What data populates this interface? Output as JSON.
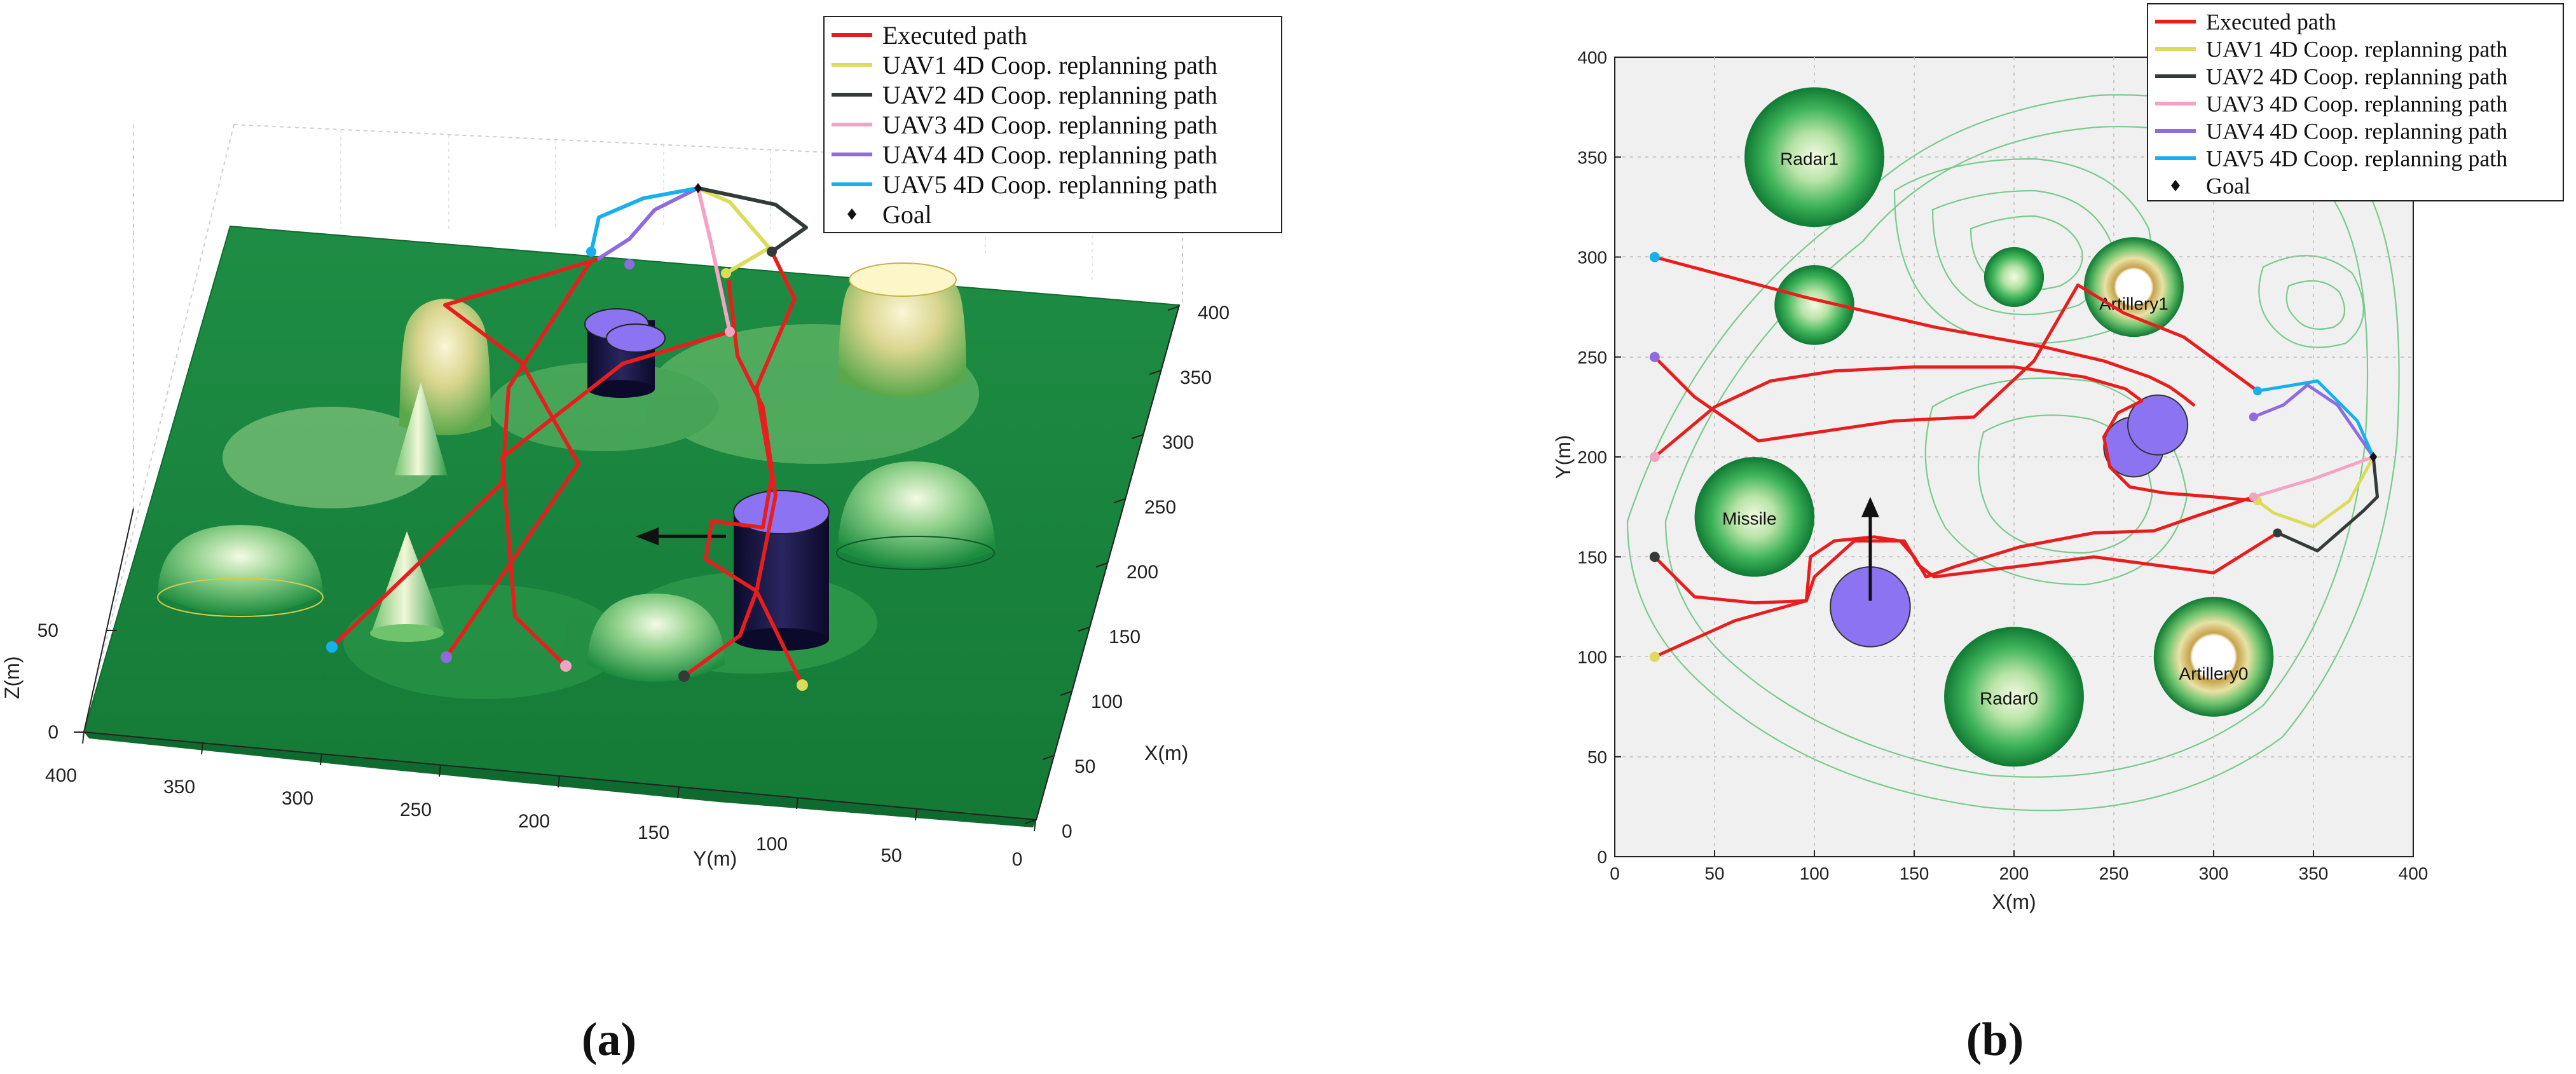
{
  "panels": [
    {
      "label": "(a)",
      "legend": [
        {
          "label": "Executed path",
          "color": "#e81e1e",
          "marker": "line"
        },
        {
          "label": "UAV1 4D Coop. replanning path",
          "color": "#dcdc5a",
          "marker": "line"
        },
        {
          "label": "UAV2 4D Coop. replanning path",
          "color": "#333b38",
          "marker": "line"
        },
        {
          "label": "UAV3 4D Coop. replanning path",
          "color": "#f4a3c4",
          "marker": "line"
        },
        {
          "label": "UAV4 4D Coop. replanning path",
          "color": "#8f6be0",
          "marker": "line"
        },
        {
          "label": "UAV5 4D Coop. replanning path",
          "color": "#16b0ef",
          "marker": "line"
        },
        {
          "label": "Goal",
          "color": "#111111",
          "marker": "diamond"
        }
      ],
      "axes": {
        "xlabel": "X(m)",
        "ylabel": "Y(m)",
        "zlabel": "Z(m)",
        "x_ticks": [
          "0",
          "50",
          "100",
          "150",
          "200",
          "250",
          "300",
          "350",
          "400"
        ],
        "y_ticks": [
          "400",
          "350",
          "300",
          "250",
          "200",
          "150",
          "100",
          "50",
          "0"
        ],
        "z_ticks": [
          "0",
          "50"
        ]
      }
    },
    {
      "label": "(b)",
      "legend": [
        {
          "label": "Executed path",
          "color": "#e81e1e",
          "marker": "line"
        },
        {
          "label": "UAV1 4D Coop. replanning path",
          "color": "#dcdc5a",
          "marker": "line"
        },
        {
          "label": "UAV2 4D Coop. replanning path",
          "color": "#333b38",
          "marker": "line"
        },
        {
          "label": "UAV3 4D Coop. replanning path",
          "color": "#f4a3c4",
          "marker": "line"
        },
        {
          "label": "UAV4 4D Coop. replanning path",
          "color": "#8f6be0",
          "marker": "line"
        },
        {
          "label": "UAV5 4D Coop. replanning path",
          "color": "#16b0ef",
          "marker": "line"
        },
        {
          "label": "Goal",
          "color": "#111111",
          "marker": "diamond"
        }
      ],
      "threat_labels": [
        "Radar1",
        "Artillery1",
        "Missile",
        "Radar0",
        "Artillery0"
      ]
    }
  ],
  "chart_data": [
    {
      "type": "scatter",
      "projection": "3d-terrain",
      "xlabel": "X(m)",
      "ylabel": "Y(m)",
      "zlabel": "Z(m)",
      "xlim": [
        0,
        400
      ],
      "ylim": [
        0,
        400
      ],
      "zlim": [
        0,
        60
      ],
      "grid": true,
      "legend_position": "top-right"
    },
    {
      "type": "line",
      "xlabel": "X(m)",
      "ylabel": "Y(m)",
      "xlim": [
        0,
        400
      ],
      "ylim": [
        0,
        400
      ],
      "x_ticks": [
        0,
        50,
        100,
        150,
        200,
        250,
        300,
        350,
        400
      ],
      "y_ticks": [
        0,
        50,
        100,
        150,
        200,
        250,
        300,
        350,
        400
      ],
      "grid": true,
      "legend_position": "top-right",
      "goal": [
        380,
        200
      ],
      "series": [
        {
          "name": "Executed path",
          "color": "#e81e1e",
          "points": [
            [
              20,
              300
            ],
            [
              95,
              280
            ],
            [
              160,
              265
            ],
            [
              215,
              255
            ],
            [
              245,
              248
            ],
            [
              268,
              240
            ],
            [
              278,
              235
            ],
            [
              285,
              230
            ],
            [
              290,
              226
            ]
          ]
        },
        {
          "name": "Executed path",
          "color": "#e81e1e",
          "points": [
            [
              20,
              250
            ],
            [
              40,
              230
            ],
            [
              72,
              208
            ],
            [
              140,
              218
            ],
            [
              180,
              220
            ],
            [
              210,
              248
            ],
            [
              232,
              286
            ],
            [
              255,
              272
            ],
            [
              285,
              260
            ],
            [
              322,
              233
            ]
          ]
        },
        {
          "name": "Executed path",
          "color": "#e81e1e",
          "points": [
            [
              20,
              200
            ],
            [
              50,
              225
            ],
            [
              78,
              238
            ],
            [
              110,
              243
            ],
            [
              150,
              245
            ],
            [
              200,
              245
            ],
            [
              235,
              240
            ],
            [
              256,
              234
            ],
            [
              264,
              228
            ],
            [
              252,
              222
            ],
            [
              245,
              210
            ],
            [
              248,
              195
            ],
            [
              258,
              185
            ],
            [
              275,
              182
            ],
            [
              300,
              180
            ],
            [
              322,
              178
            ]
          ]
        },
        {
          "name": "Executed path",
          "color": "#e81e1e",
          "points": [
            [
              20,
              150
            ],
            [
              40,
              130
            ],
            [
              70,
              127
            ],
            [
              96,
              128
            ],
            [
              98,
              150
            ],
            [
              110,
              158
            ],
            [
              130,
              160
            ],
            [
              143,
              158
            ],
            [
              150,
              150
            ],
            [
              156,
              140
            ],
            [
              170,
              145
            ],
            [
              203,
              155
            ],
            [
              240,
              162
            ],
            [
              270,
              163
            ],
            [
              290,
              170
            ],
            [
              320,
              180
            ]
          ]
        },
        {
          "name": "Executed path",
          "color": "#e81e1e",
          "points": [
            [
              20,
              100
            ],
            [
              60,
              118
            ],
            [
              96,
              128
            ],
            [
              100,
              140
            ],
            [
              120,
              158
            ],
            [
              145,
              158
            ],
            [
              152,
              146
            ],
            [
              160,
              140
            ],
            [
              200,
              145
            ],
            [
              240,
              150
            ],
            [
              300,
              142
            ],
            [
              332,
              162
            ]
          ]
        },
        {
          "name": "UAV1 4D Coop. replanning path",
          "color": "#dcdc5a",
          "points": [
            [
              322,
              178
            ],
            [
              330,
              172
            ],
            [
              350,
              165
            ],
            [
              368,
              178
            ],
            [
              380,
              200
            ]
          ]
        },
        {
          "name": "UAV2 4D Coop. replanning path",
          "color": "#333b38",
          "points": [
            [
              332,
              162
            ],
            [
              352,
              153
            ],
            [
              375,
              173
            ],
            [
              382,
              180
            ],
            [
              380,
              200
            ]
          ]
        },
        {
          "name": "UAV3 4D Coop. replanning path",
          "color": "#f4a3c4",
          "points": [
            [
              320,
              180
            ],
            [
              350,
              189
            ],
            [
              380,
              200
            ]
          ]
        },
        {
          "name": "UAV4 4D Coop. replanning path",
          "color": "#8f6be0",
          "points": [
            [
              320,
              220
            ],
            [
              335,
              226
            ],
            [
              347,
              236
            ],
            [
              362,
              226
            ],
            [
              380,
              200
            ]
          ]
        },
        {
          "name": "UAV5 4D Coop. replanning path",
          "color": "#16b0ef",
          "points": [
            [
              322,
              233
            ],
            [
              340,
              236
            ],
            [
              352,
              238
            ],
            [
              362,
              228
            ],
            [
              372,
              218
            ],
            [
              380,
              200
            ]
          ]
        }
      ],
      "start_points": [
        {
          "x": 20,
          "y": 300,
          "color": "#16b0ef"
        },
        {
          "x": 20,
          "y": 250,
          "color": "#8f6be0"
        },
        {
          "x": 20,
          "y": 200,
          "color": "#f4a3c4"
        },
        {
          "x": 20,
          "y": 150,
          "color": "#333b38"
        },
        {
          "x": 20,
          "y": 100,
          "color": "#dcdc5a"
        }
      ],
      "threats": [
        {
          "label": "Radar1",
          "x": 100,
          "y": 350,
          "r": 35,
          "kind": "radar"
        },
        {
          "label": "",
          "x": 100,
          "y": 276,
          "r": 20,
          "kind": "radar"
        },
        {
          "label": "",
          "x": 200,
          "y": 290,
          "r": 15,
          "kind": "radar"
        },
        {
          "label": "Artillery1",
          "x": 260,
          "y": 285,
          "r": 25,
          "kind": "artillery"
        },
        {
          "label": "Missile",
          "x": 70,
          "y": 170,
          "r": 30,
          "kind": "radar"
        },
        {
          "label": "Radar0",
          "x": 200,
          "y": 80,
          "r": 35,
          "kind": "radar"
        },
        {
          "label": "Artillery0",
          "x": 300,
          "y": 100,
          "r": 30,
          "kind": "artillery"
        }
      ],
      "obstacles": [
        {
          "x": 128,
          "y": 125,
          "r": 20
        },
        {
          "x": 260,
          "y": 205,
          "r": 15
        },
        {
          "x": 272,
          "y": 216,
          "r": 15
        }
      ],
      "arrow": {
        "from": [
          128,
          128
        ],
        "to": [
          128,
          180
        ]
      }
    }
  ]
}
